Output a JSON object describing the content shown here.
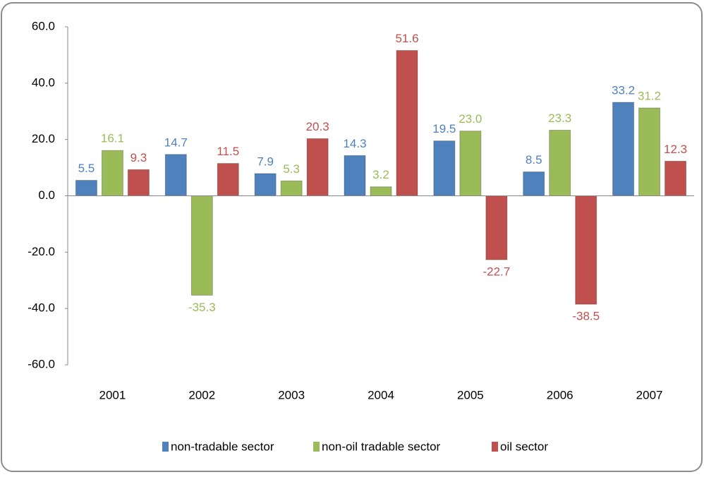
{
  "chart_data": {
    "type": "bar",
    "categories": [
      "2001",
      "2002",
      "2003",
      "2004",
      "2005",
      "2006",
      "2007"
    ],
    "series": [
      {
        "name": "non-tradable sector",
        "color": "#4f81bd",
        "values": [
          5.5,
          14.7,
          7.9,
          14.3,
          19.5,
          8.5,
          33.2
        ],
        "value_labels": [
          "5.5",
          "14.7",
          "7.9",
          "14.3",
          "19.5",
          "8.5",
          "33.2"
        ]
      },
      {
        "name": "non-oil tradable sector",
        "color": "#9bbb59",
        "values": [
          16.1,
          -35.3,
          5.3,
          3.2,
          23.0,
          23.3,
          31.2
        ],
        "value_labels": [
          "16.1",
          "-35.3",
          "5.3",
          "3.2",
          "23.0",
          "23.3",
          "31.2"
        ]
      },
      {
        "name": "oil sector",
        "color": "#c0504d",
        "values": [
          9.3,
          11.5,
          20.3,
          51.6,
          -22.7,
          -38.5,
          12.3
        ],
        "value_labels": [
          "9.3",
          "11.5",
          "20.3",
          "51.6",
          "-22.7",
          "-38.5",
          "12.3"
        ]
      }
    ],
    "ylim": [
      -60,
      60
    ],
    "yticks": [
      {
        "value": -60,
        "label": "-60.0"
      },
      {
        "value": -40,
        "label": "-40.0"
      },
      {
        "value": -20,
        "label": "-20.0"
      },
      {
        "value": 0,
        "label": "0.0"
      },
      {
        "value": 20,
        "label": "20.0"
      },
      {
        "value": 40,
        "label": "40.0"
      },
      {
        "value": 60,
        "label": "60.0"
      }
    ],
    "grid": false,
    "legend": "bottom"
  }
}
